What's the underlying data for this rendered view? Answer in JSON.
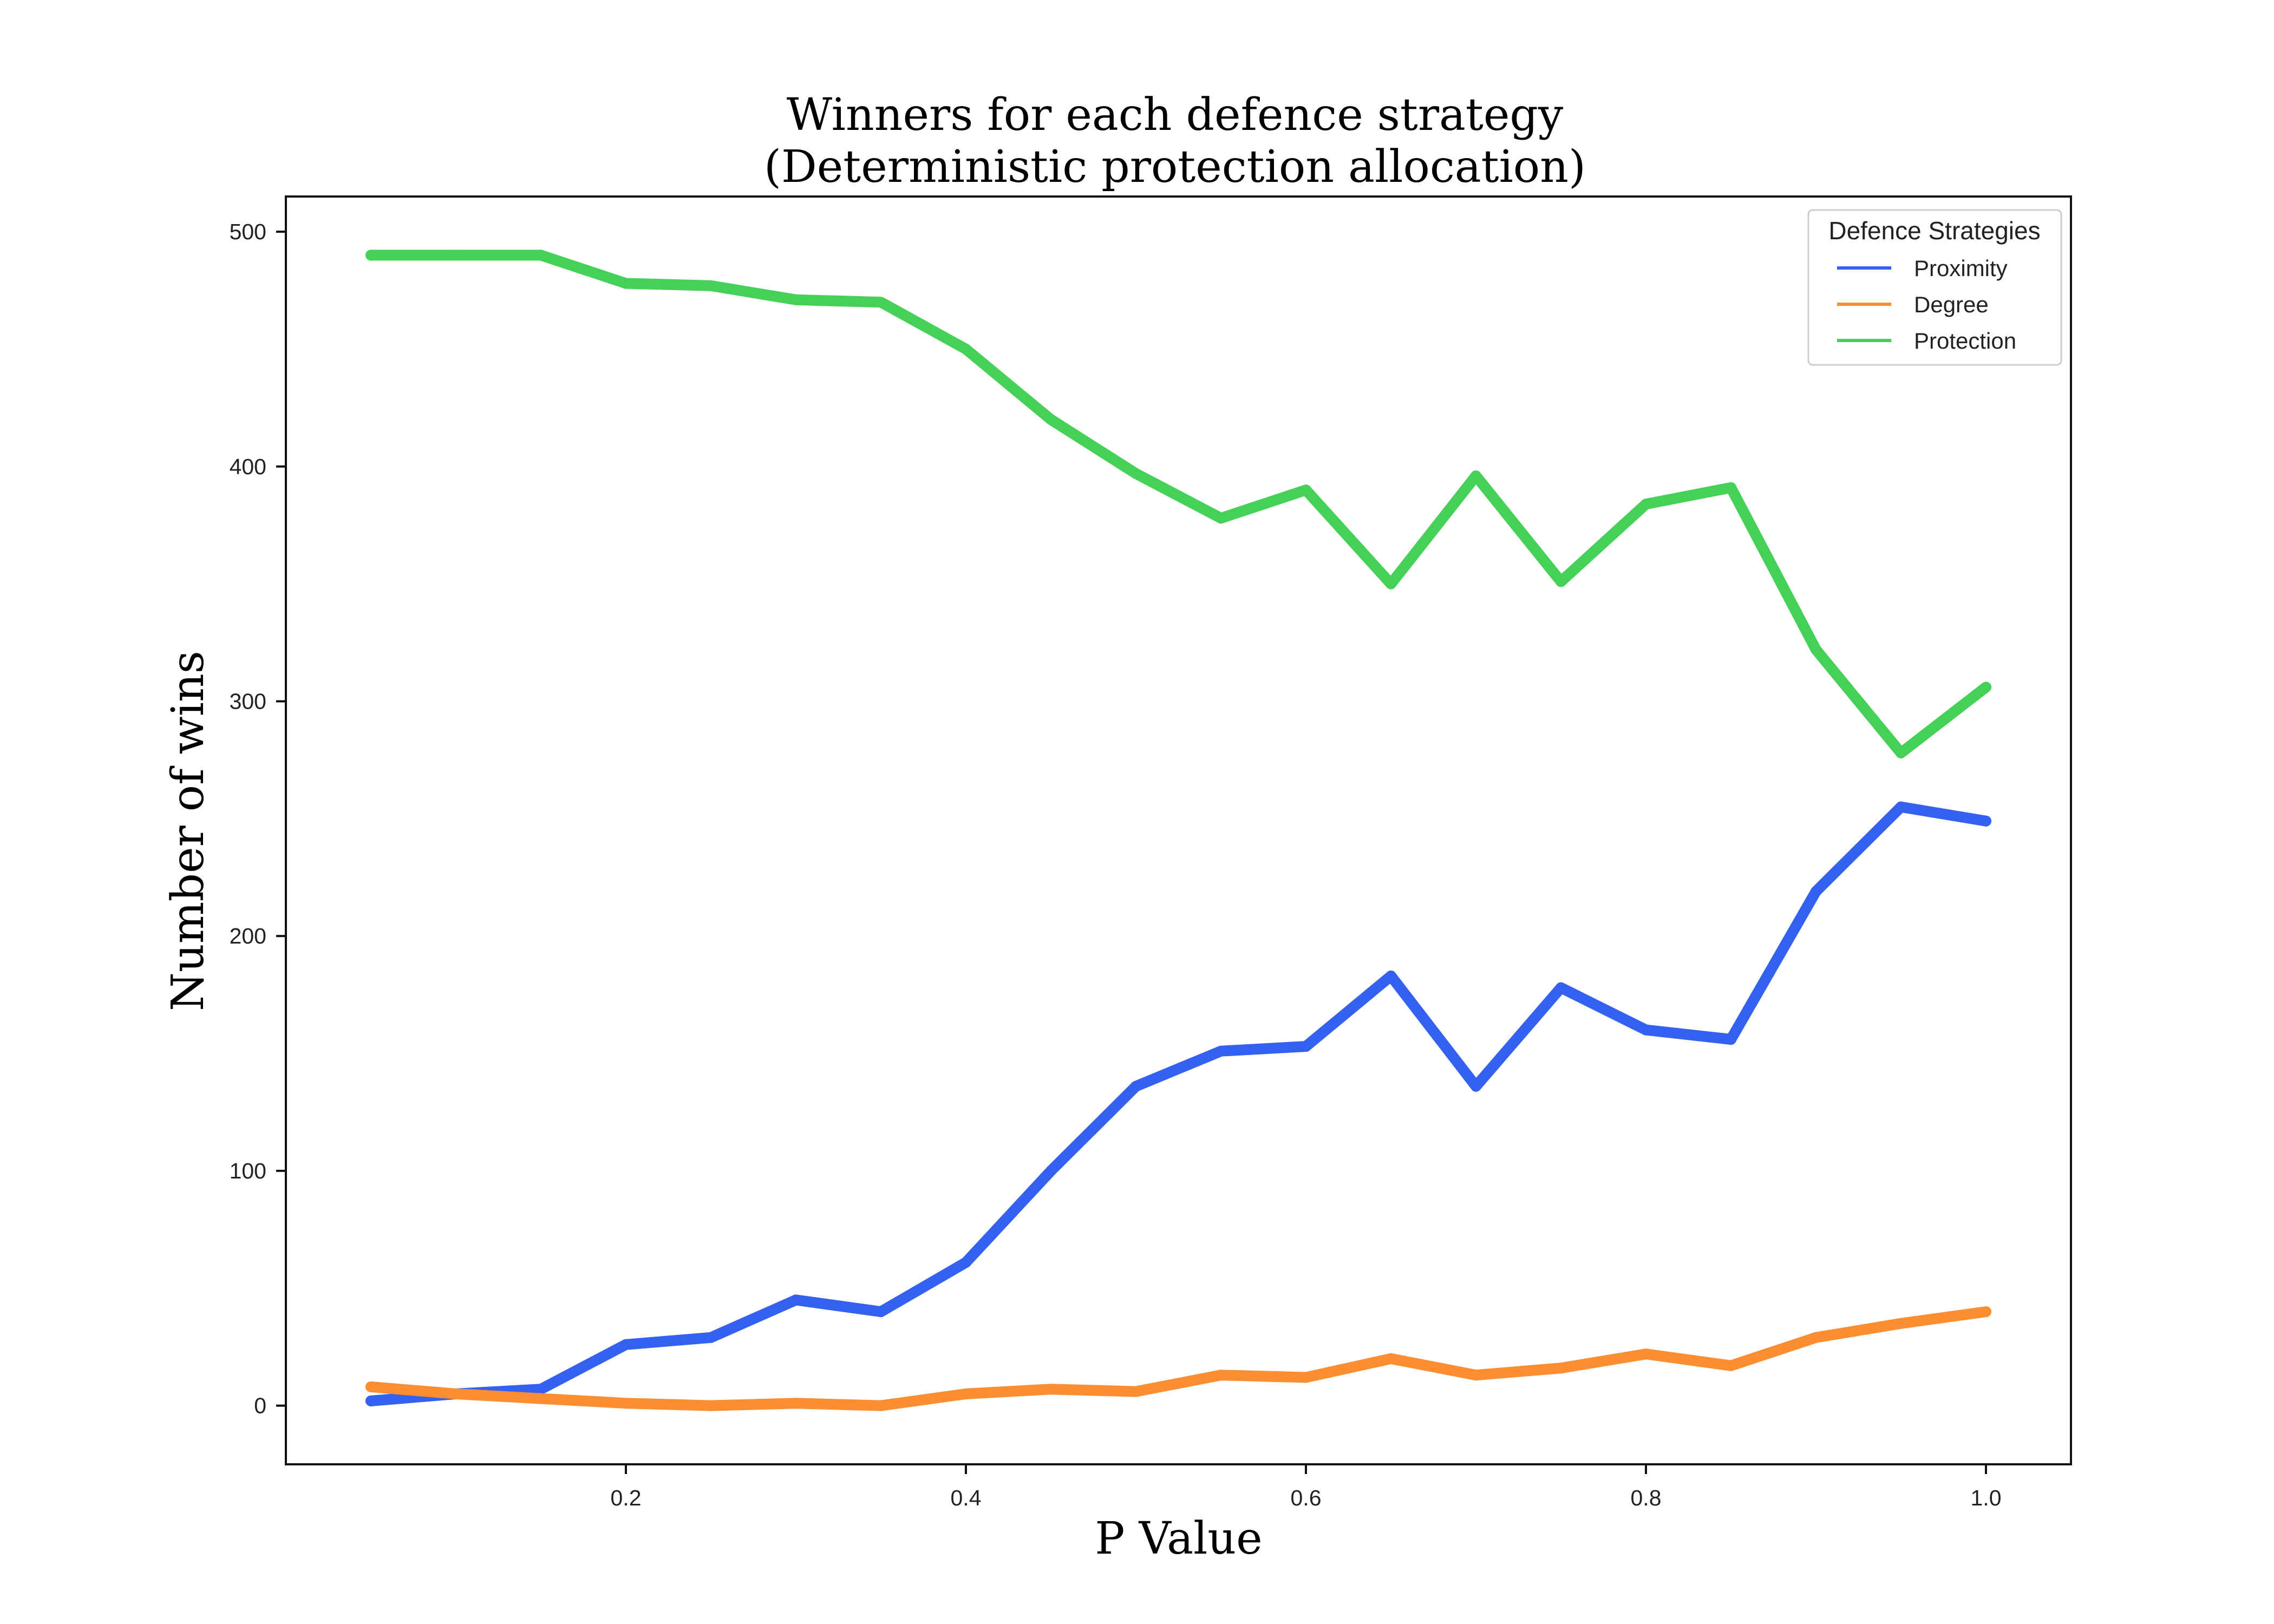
{
  "chart_data": {
    "type": "line",
    "title": "Winners for each defence strategy",
    "subtitle": "(Deterministic protection allocation)",
    "xlabel": "P Value",
    "ylabel": "Number of wins",
    "xlim": [
      0.0,
      1.05
    ],
    "ylim": [
      -25,
      515
    ],
    "x_ticks": [
      0.2,
      0.4,
      0.6,
      0.8,
      1.0
    ],
    "x_tick_labels": [
      "0.2",
      "0.4",
      "0.6",
      "0.8",
      "1.0"
    ],
    "y_ticks": [
      0,
      100,
      200,
      300,
      400,
      500
    ],
    "y_tick_labels": [
      "0",
      "100",
      "200",
      "300",
      "400",
      "500"
    ],
    "grid": false,
    "legend": {
      "title": "Defence Strategies",
      "placement": "top-right"
    },
    "x": [
      0.05,
      0.1,
      0.15,
      0.2,
      0.25,
      0.3,
      0.35,
      0.4,
      0.45,
      0.5,
      0.55,
      0.6,
      0.65,
      0.7,
      0.75,
      0.8,
      0.85,
      0.9,
      0.95,
      1.0
    ],
    "series": [
      {
        "name": "Proximity",
        "color": "#3461f0",
        "values": [
          2,
          5,
          7,
          26,
          29,
          45,
          40,
          61,
          100,
          136,
          151,
          153,
          183,
          136,
          178,
          160,
          156,
          219,
          255,
          249
        ]
      },
      {
        "name": "Degree",
        "color": "#fb8e30",
        "values": [
          8,
          5,
          3,
          1,
          0,
          1,
          0,
          5,
          7,
          6,
          13,
          12,
          20,
          13,
          16,
          22,
          17,
          29,
          35,
          40
        ]
      },
      {
        "name": "Protection",
        "color": "#45d158",
        "values": [
          490,
          490,
          490,
          478,
          477,
          471,
          470,
          450,
          420,
          397,
          378,
          390,
          350,
          396,
          351,
          384,
          391,
          322,
          278,
          306
        ]
      }
    ]
  }
}
